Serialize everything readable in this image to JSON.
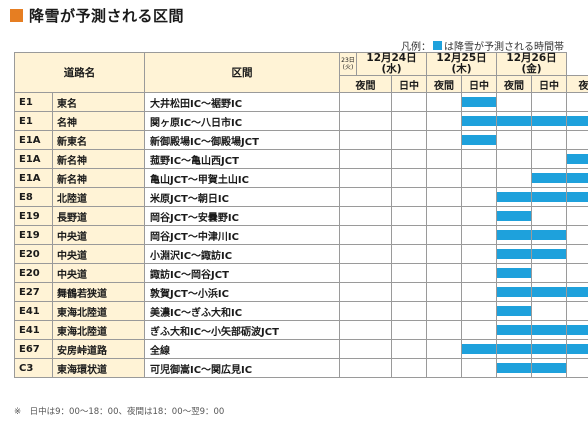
{
  "title": "降雪が予測される区間",
  "legend": {
    "prefix": "凡例",
    "colon": "：",
    "text": "は降雪が予測される時間帯",
    "color": "#1ea1dc"
  },
  "header": {
    "col_code": "",
    "col_route": "道路名",
    "col_section": "区間",
    "day0": {
      "line1": "23日",
      "line2": "(火)"
    },
    "days": [
      {
        "date": "12月24日",
        "weekday": "(水)"
      },
      {
        "date": "12月25日",
        "weekday": "(木)"
      },
      {
        "date": "12月26日",
        "weekday": "(金)"
      }
    ],
    "slots": [
      "夜間",
      "日中",
      "夜間",
      "日中",
      "夜間",
      "日中",
      "夜"
    ]
  },
  "rows": [
    {
      "code": "E1",
      "route": "東名",
      "section": "大井松田IC～裾野IC",
      "snow": [
        0,
        0,
        0,
        1,
        0,
        0,
        0
      ]
    },
    {
      "code": "E1",
      "route": "名神",
      "section": "関ヶ原IC～八日市IC",
      "snow": [
        0,
        0,
        0,
        1,
        1,
        1,
        1
      ]
    },
    {
      "code": "E1A",
      "route": "新東名",
      "section": "新御殿場IC～御殿場JCT",
      "snow": [
        0,
        0,
        0,
        1,
        0,
        0,
        0
      ]
    },
    {
      "code": "E1A",
      "route": "新名神",
      "section": "菰野IC～亀山西JCT",
      "snow": [
        0,
        0,
        0,
        0,
        0,
        0,
        1
      ]
    },
    {
      "code": "E1A",
      "route": "新名神",
      "section": "亀山JCT～甲賀土山IC",
      "snow": [
        0,
        0,
        0,
        0,
        0,
        1,
        1
      ]
    },
    {
      "code": "E8",
      "route": "北陸道",
      "section": "米原JCT～朝日IC",
      "snow": [
        0,
        0,
        0,
        0,
        1,
        1,
        1
      ]
    },
    {
      "code": "E19",
      "route": "長野道",
      "section": "岡谷JCT～安曇野IC",
      "snow": [
        0,
        0,
        0,
        0,
        1,
        0,
        0
      ]
    },
    {
      "code": "E19",
      "route": "中央道",
      "section": "岡谷JCT～中津川IC",
      "snow": [
        0,
        0,
        0,
        0,
        1,
        1,
        0
      ]
    },
    {
      "code": "E20",
      "route": "中央道",
      "section": "小淵沢IC～諏訪IC",
      "snow": [
        0,
        0,
        0,
        0,
        1,
        1,
        0
      ]
    },
    {
      "code": "E20",
      "route": "中央道",
      "section": "諏訪IC～岡谷JCT",
      "snow": [
        0,
        0,
        0,
        0,
        1,
        0,
        0
      ]
    },
    {
      "code": "E27",
      "route": "舞鶴若狭道",
      "section": "敦賀JCT～小浜IC",
      "snow": [
        0,
        0,
        0,
        0,
        1,
        1,
        1
      ]
    },
    {
      "code": "E41",
      "route": "東海北陸道",
      "section": "美濃IC～ぎふ大和IC",
      "snow": [
        0,
        0,
        0,
        0,
        1,
        0,
        0
      ]
    },
    {
      "code": "E41",
      "route": "東海北陸道",
      "section": "ぎふ大和IC～小矢部砺波JCT",
      "snow": [
        0,
        0,
        0,
        0,
        1,
        1,
        1
      ]
    },
    {
      "code": "E67",
      "route": "安房峠道路",
      "section": "全線",
      "snow": [
        0,
        0,
        0,
        1,
        1,
        1,
        1
      ]
    },
    {
      "code": "C3",
      "route": "東海環状道",
      "section": "可児御嵩IC～関広見IC",
      "snow": [
        0,
        0,
        0,
        0,
        1,
        1,
        0
      ]
    }
  ],
  "note": "※　日中は9：00～18：00、夜間は18：00～翌9：00"
}
